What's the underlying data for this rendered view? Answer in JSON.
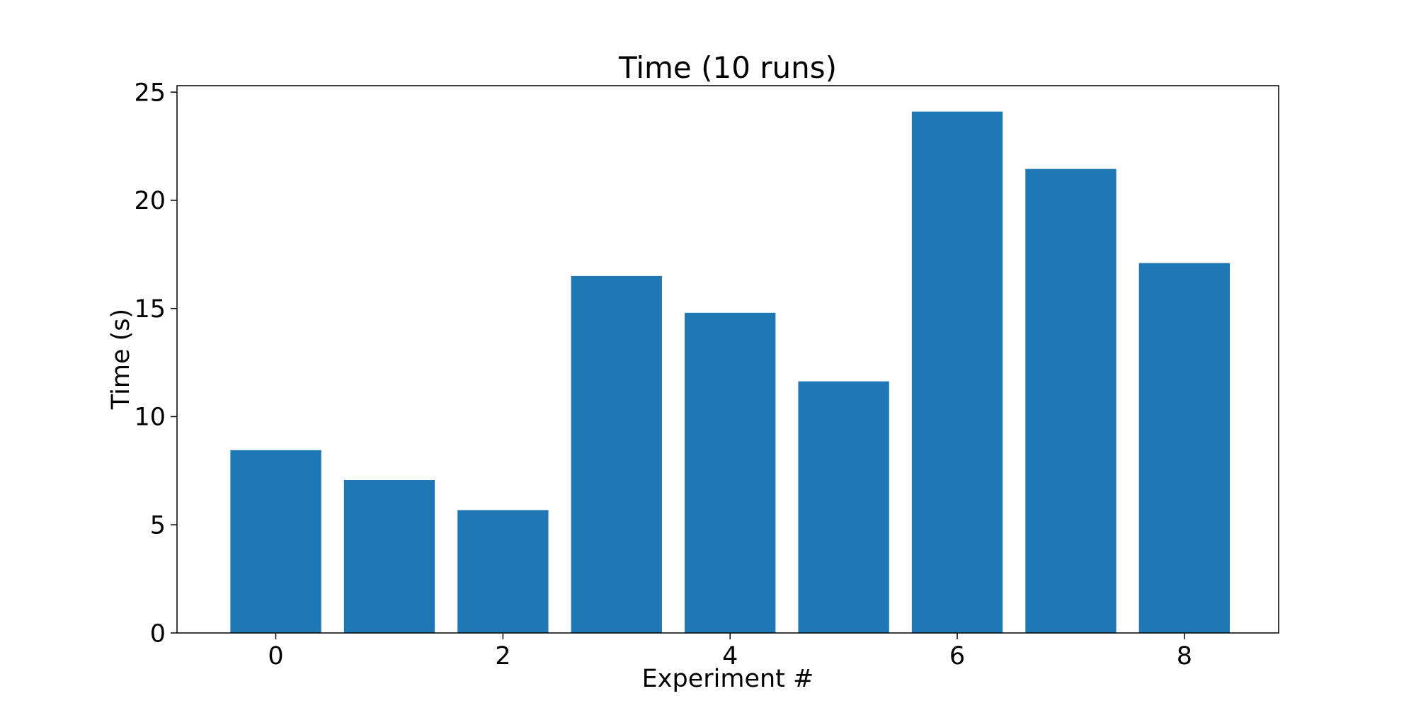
{
  "chart_data": {
    "type": "bar",
    "title": "Time (10 runs)",
    "xlabel": "Experiment #",
    "ylabel": "Time (s)",
    "categories": [
      0,
      1,
      2,
      3,
      4,
      5,
      6,
      7,
      8
    ],
    "values": [
      8.45,
      7.07,
      5.68,
      16.5,
      14.8,
      11.63,
      24.1,
      21.45,
      17.1
    ],
    "xticks": [
      "0",
      "2",
      "4",
      "6",
      "8"
    ],
    "xtick_values": [
      0,
      2,
      4,
      6,
      8
    ],
    "yticks": [
      "0",
      "5",
      "10",
      "15",
      "20",
      "25"
    ],
    "ytick_values": [
      0,
      5,
      10,
      15,
      20,
      25
    ],
    "xlim": [
      -0.87,
      8.83
    ],
    "ylim": [
      0,
      25.3
    ],
    "grid": false,
    "bar_color": "#1f77b4"
  }
}
